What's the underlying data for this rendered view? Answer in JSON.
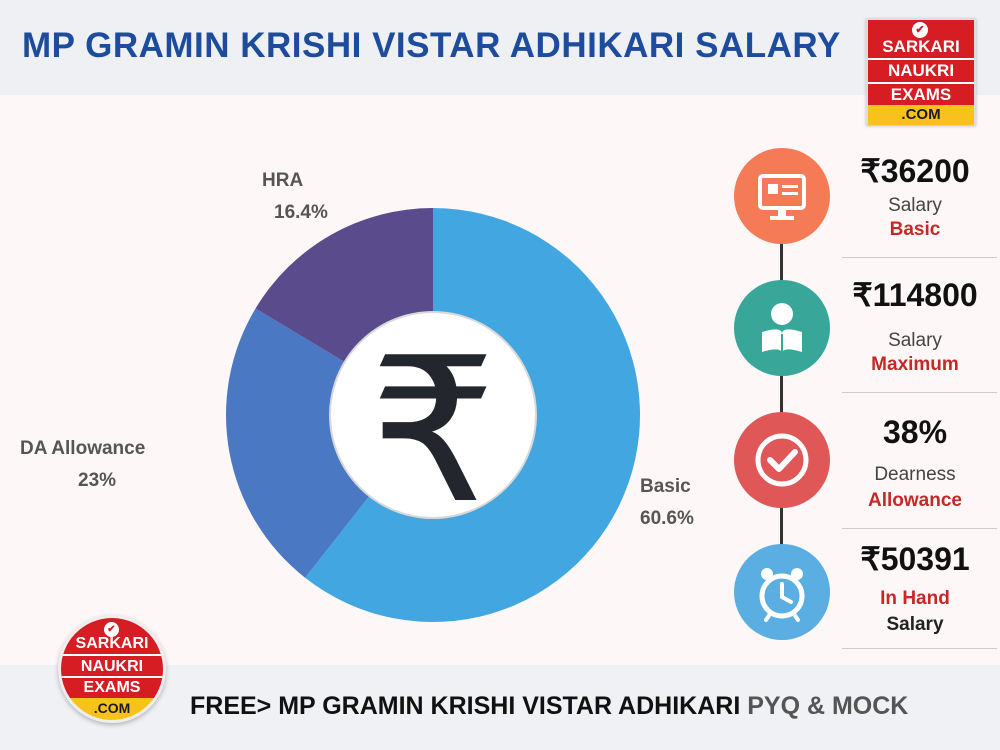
{
  "header": {
    "title": "MP GRAMIN KRISHI VISTAR ADHIKARI SALARY"
  },
  "logo": {
    "line1": "SARKARI",
    "line2": "NAUKRI",
    "line3": "EXAMS",
    "line4": ".COM"
  },
  "chart_data": {
    "type": "pie",
    "categories": [
      "Basic",
      "DA Allowance",
      "HRA"
    ],
    "values": [
      60.6,
      23,
      16.4
    ],
    "value_labels": [
      "60.6%",
      "23%",
      "16.4%"
    ],
    "colors": [
      "#42a6e1",
      "#4b78c2",
      "#5a4b8c"
    ],
    "center_symbol": "₹"
  },
  "stats": [
    {
      "amount": "₹36200",
      "line1": "Salary",
      "line2": "Basic",
      "icon": "certificate-screen-icon",
      "color": "#f47b56"
    },
    {
      "amount": "₹114800",
      "line1": "Salary",
      "line2": "Maximum",
      "icon": "reading-person-icon",
      "color": "#38a79a"
    },
    {
      "amount": "38%",
      "line1": "Dearness",
      "line2": "Allowance",
      "icon": "checkmark-icon",
      "color": "#e05757"
    },
    {
      "amount": "₹50391",
      "line1": "In Hand",
      "line2": "Salary",
      "icon": "alarm-clock-icon",
      "color": "#5aaee1"
    }
  ],
  "footer": {
    "main": "FREE> MP GRAMIN KRISHI VISTAR ADHIKARI",
    "suffix": "PYQ & MOCK"
  }
}
